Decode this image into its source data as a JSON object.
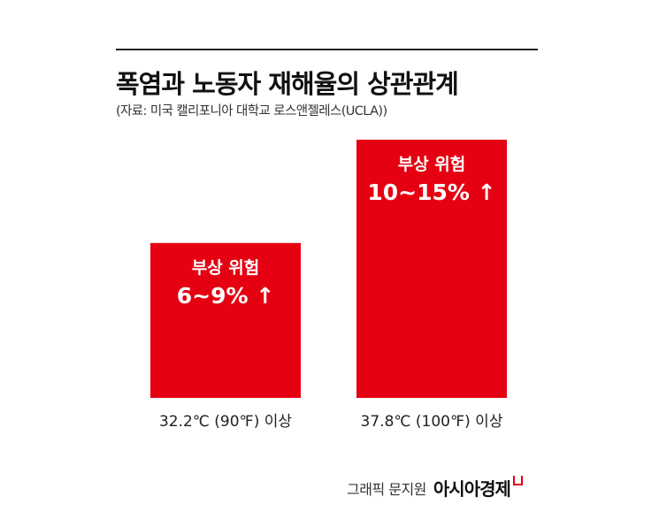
{
  "title": "폭염과 노동자 재해율의 상관관계",
  "source": "(자료: 미국 캘리포니아 대학교 로스앤젤레스(UCLA))",
  "credit": {
    "text": "그래픽 문지원",
    "brand": "아시아경제",
    "brand_mark_color": "#e50012"
  },
  "colors": {
    "bar": "#e50012",
    "bar_text": "#ffffff"
  },
  "chart_data": {
    "type": "bar",
    "categories": [
      "32.2℃ (90℉) 이상",
      "37.8℃ (100℉) 이상"
    ],
    "series": [
      {
        "values": [
          9,
          15
        ]
      }
    ],
    "bar_labels": [
      {
        "line1": "부상 위험",
        "line2": "6~9% ↑"
      },
      {
        "line1": "부상 위험",
        "line2": "10~15% ↑"
      }
    ],
    "title": "폭염과 노동자 재해율의 상관관계",
    "xlabel": "",
    "ylabel": "",
    "ylim": [
      0,
      15
    ],
    "grid": false,
    "legend": "none"
  }
}
